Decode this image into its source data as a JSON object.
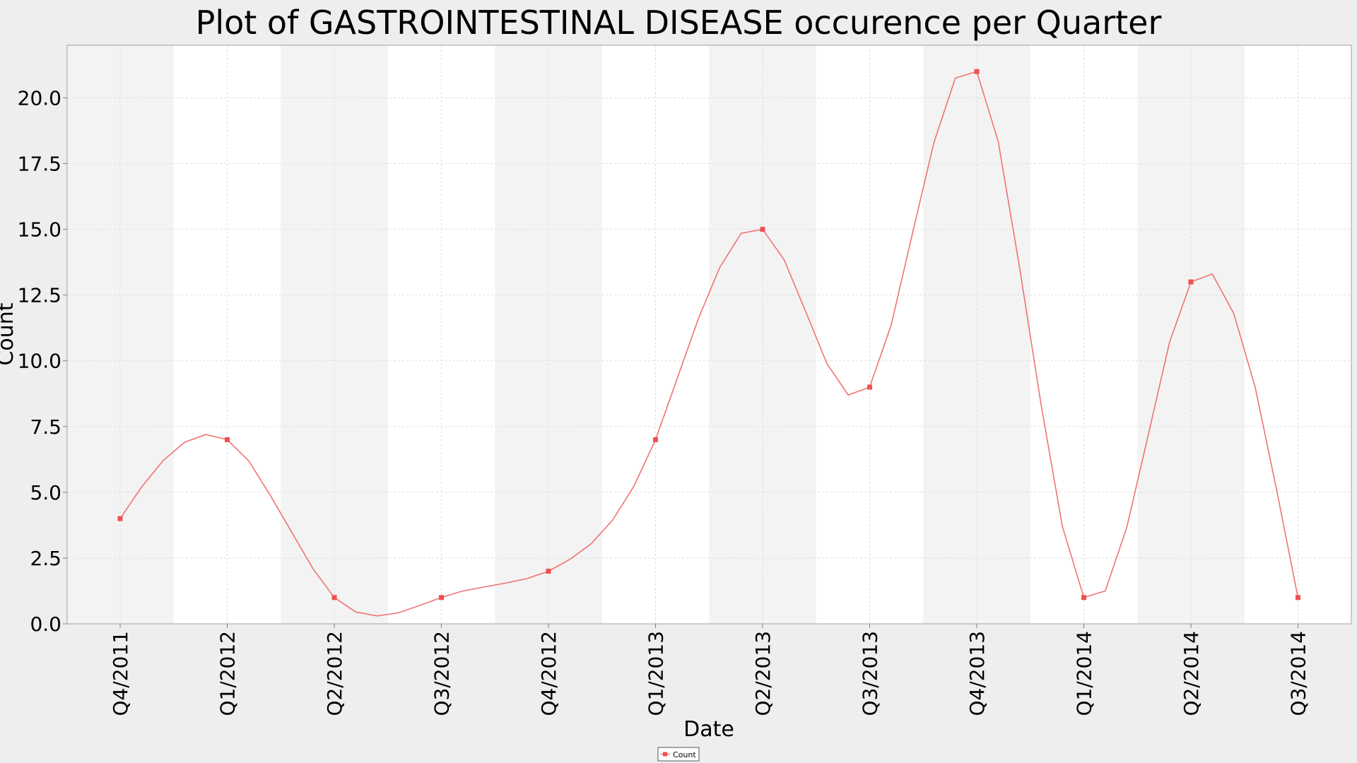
{
  "chart_data": {
    "type": "line",
    "title": "Plot of GASTROINTESTINAL DISEASE occurence per Quarter",
    "xlabel": "Date",
    "ylabel": "Count",
    "categories": [
      "Q4/2011",
      "Q1/2012",
      "Q2/2012",
      "Q3/2012",
      "Q4/2012",
      "Q1/2013",
      "Q2/2013",
      "Q3/2013",
      "Q4/2013",
      "Q1/2014",
      "Q2/2014",
      "Q3/2014"
    ],
    "series": [
      {
        "name": "Count",
        "values": [
          4,
          7,
          1,
          1,
          2,
          7,
          15,
          9,
          21,
          1,
          13,
          1
        ]
      }
    ],
    "smooth_curve": [
      4.0,
      5.2,
      6.2,
      6.9,
      7.2,
      7.0,
      6.2,
      4.9,
      3.5,
      2.1,
      1.0,
      0.45,
      0.3,
      0.42,
      0.7,
      1.0,
      1.25,
      1.4,
      1.55,
      1.72,
      2.0,
      2.45,
      3.05,
      3.95,
      5.25,
      7.0,
      9.3,
      11.6,
      13.55,
      14.85,
      15.0,
      13.85,
      11.9,
      9.9,
      8.7,
      9.0,
      11.35,
      14.85,
      18.3,
      20.75,
      21.0,
      18.35,
      13.55,
      8.35,
      3.7,
      1.0,
      1.25,
      3.65,
      7.15,
      10.7,
      13.0,
      13.3,
      11.8,
      9.0,
      5.1,
      1.0
    ],
    "ylim": [
      0,
      22
    ],
    "yticks": [
      "0.0",
      "2.5",
      "5.0",
      "7.5",
      "10.0",
      "12.5",
      "15.0",
      "17.5",
      "20.0"
    ],
    "grid": true,
    "legend_position": "bottom-center",
    "colors": {
      "line": "#f07373",
      "marker": "#f05050",
      "band": "#f3f3f3",
      "plot_bg": "#ffffff",
      "grid": "#dddddd"
    }
  }
}
